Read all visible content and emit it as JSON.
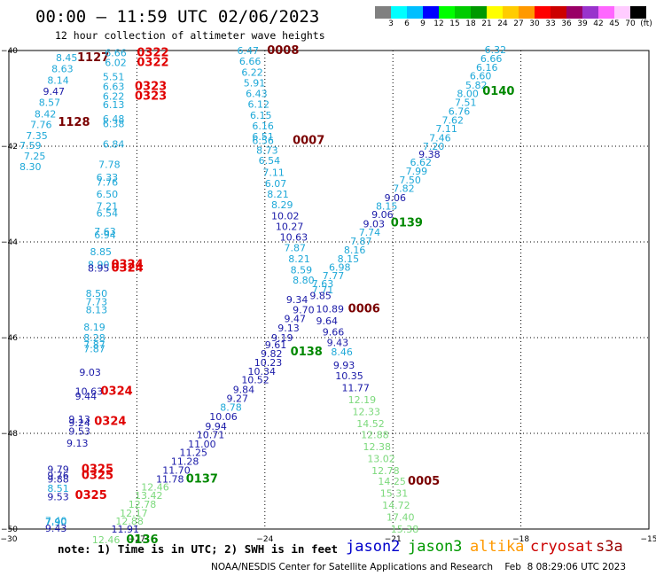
{
  "header": {
    "title": "00:00 — 11:59 UTC 02/06/2023",
    "subtitle": "12 hour collection of altimeter wave heights"
  },
  "legend": {
    "colors": [
      "#808080",
      "#00ffff",
      "#00bfff",
      "#0000ff",
      "#00ff00",
      "#00cc00",
      "#009900",
      "#ffff00",
      "#ffcc00",
      "#ff9900",
      "#ff0000",
      "#cc0000",
      "#990066",
      "#9933cc",
      "#ff66ff",
      "#ffccff",
      "#000000"
    ],
    "labels": [
      "3",
      "6",
      "9",
      "12",
      "15",
      "18",
      "21",
      "24",
      "27",
      "30",
      "33",
      "36",
      "39",
      "42",
      "45",
      "70",
      "(ft)"
    ]
  },
  "axes": {
    "x_ticks": [
      "−30",
      "−27",
      "−24",
      "−21",
      "−18",
      "−15"
    ],
    "y_ticks": [
      "−40",
      "−42",
      "−44",
      "−46",
      "−48",
      "−50"
    ]
  },
  "colors": {
    "cyan": "#1ea8d8",
    "blue": "#1a1aa8",
    "green": "#7cd97c",
    "darkgreen": "#008800",
    "red": "#e00000",
    "maroon": "#7a0000",
    "grid": "#000000"
  },
  "tracks": [
    {
      "name": "track-1127-cyan",
      "color": "cyan",
      "lat": [
        -40.1,
        -40.35,
        -40.65,
        -40.95,
        -41.25,
        -41.55,
        -41.85,
        -42.15,
        -42.45
      ],
      "lon": [
        -28.8,
        -28.9,
        -29.0,
        -29.1,
        -29.2,
        -29.3,
        -29.4,
        -29.5,
        -29.6
      ],
      "values": [
        "8.45",
        "8.63",
        "8.14",
        "9.47",
        "8.57",
        "8.42",
        "7.76",
        "7.35",
        "7.59"
      ]
    },
    {
      "name": "track-1127-cyan-b",
      "color": "cyan",
      "lat": [
        -42.3,
        -42.55
      ],
      "lon": [
        -29.45,
        -29.55
      ],
      "values": [
        "7.25",
        "8.30"
      ]
    }
  ],
  "labels": [
    {
      "t": "8.45",
      "c": "cyan",
      "lon": -28.9,
      "lat": -40.15
    },
    {
      "t": "8.63",
      "c": "cyan",
      "lon": -29.0,
      "lat": -40.38
    },
    {
      "t": "8.14",
      "c": "cyan",
      "lon": -29.1,
      "lat": -40.62
    },
    {
      "t": "9.47",
      "c": "blue",
      "lon": -29.2,
      "lat": -40.85
    },
    {
      "t": "8.57",
      "c": "cyan",
      "lon": -29.3,
      "lat": -41.08
    },
    {
      "t": "8.42",
      "c": "cyan",
      "lon": -29.4,
      "lat": -41.32
    },
    {
      "t": "7.76",
      "c": "cyan",
      "lon": -29.5,
      "lat": -41.55
    },
    {
      "t": "7.35",
      "c": "cyan",
      "lon": -29.6,
      "lat": -41.78
    },
    {
      "t": "7.59",
      "c": "cyan",
      "lon": -29.75,
      "lat": -41.98
    },
    {
      "t": "7.25",
      "c": "cyan",
      "lon": -29.65,
      "lat": -42.2
    },
    {
      "t": "8.30",
      "c": "cyan",
      "lon": -29.75,
      "lat": -42.43
    },
    {
      "t": "1127",
      "c": "maroon",
      "lon": -28.4,
      "lat": -40.15,
      "big": true
    },
    {
      "t": "1128",
      "c": "maroon",
      "lon": -28.85,
      "lat": -41.5,
      "big": true
    },
    {
      "t": "6.66",
      "c": "cyan",
      "lon": -27.75,
      "lat": -40.05
    },
    {
      "t": "6.02",
      "c": "cyan",
      "lon": -27.75,
      "lat": -40.25
    },
    {
      "t": "5.51",
      "c": "cyan",
      "lon": -27.8,
      "lat": -40.55
    },
    {
      "t": "6.63",
      "c": "cyan",
      "lon": -27.8,
      "lat": -40.75
    },
    {
      "t": "6.22",
      "c": "cyan",
      "lon": -27.8,
      "lat": -40.95
    },
    {
      "t": "6.13",
      "c": "cyan",
      "lon": -27.8,
      "lat": -41.13
    },
    {
      "t": "6.48",
      "c": "cyan",
      "lon": -27.8,
      "lat": -41.43
    },
    {
      "t": "6.38",
      "c": "cyan",
      "lon": -27.8,
      "lat": -41.53
    },
    {
      "t": "6.84",
      "c": "cyan",
      "lon": -27.8,
      "lat": -41.95
    },
    {
      "t": "0322",
      "c": "red",
      "lon": -27.0,
      "lat": -40.05,
      "big": true
    },
    {
      "t": "0322",
      "c": "red",
      "lon": -27.0,
      "lat": -40.25,
      "big": true
    },
    {
      "t": "0323",
      "c": "red",
      "lon": -27.05,
      "lat": -40.75,
      "big": true
    },
    {
      "t": "0323",
      "c": "red",
      "lon": -27.05,
      "lat": -40.95,
      "big": true
    },
    {
      "t": "7.78",
      "c": "cyan",
      "lon": -27.9,
      "lat": -42.38
    },
    {
      "t": "6.33",
      "c": "cyan",
      "lon": -27.95,
      "lat": -42.65
    },
    {
      "t": "7.76",
      "c": "cyan",
      "lon": -27.95,
      "lat": -42.75
    },
    {
      "t": "6.50",
      "c": "cyan",
      "lon": -27.95,
      "lat": -43.0
    },
    {
      "t": "7.21",
      "c": "cyan",
      "lon": -27.95,
      "lat": -43.25
    },
    {
      "t": "6.54",
      "c": "cyan",
      "lon": -27.95,
      "lat": -43.4
    },
    {
      "t": "7.63",
      "c": "cyan",
      "lon": -28.0,
      "lat": -43.78
    },
    {
      "t": "6.94",
      "c": "cyan",
      "lon": -28.0,
      "lat": -43.85
    },
    {
      "t": "8.85",
      "c": "cyan",
      "lon": -28.1,
      "lat": -44.2
    },
    {
      "t": "8.90",
      "c": "cyan",
      "lon": -28.15,
      "lat": -44.47
    },
    {
      "t": "8.95",
      "c": "blue",
      "lon": -28.15,
      "lat": -44.55
    },
    {
      "t": "0324",
      "c": "red",
      "lon": -27.6,
      "lat": -44.47,
      "big": true
    },
    {
      "t": "0324",
      "c": "red",
      "lon": -27.6,
      "lat": -44.55,
      "big": true
    },
    {
      "t": "8.50",
      "c": "cyan",
      "lon": -28.2,
      "lat": -45.07
    },
    {
      "t": "7.73",
      "c": "cyan",
      "lon": -28.2,
      "lat": -45.25
    },
    {
      "t": "8.13",
      "c": "cyan",
      "lon": -28.2,
      "lat": -45.42
    },
    {
      "t": "8.19",
      "c": "cyan",
      "lon": -28.25,
      "lat": -45.78
    },
    {
      "t": "8.28",
      "c": "cyan",
      "lon": -28.25,
      "lat": -46.0
    },
    {
      "t": "7.87",
      "c": "cyan",
      "lon": -28.25,
      "lat": -46.15
    },
    {
      "t": "7.87",
      "c": "cyan",
      "lon": -28.25,
      "lat": -46.23
    },
    {
      "t": "9.03",
      "c": "blue",
      "lon": -28.35,
      "lat": -46.72
    },
    {
      "t": "10.63",
      "c": "blue",
      "lon": -28.45,
      "lat": -47.12
    },
    {
      "t": "9.44",
      "c": "blue",
      "lon": -28.45,
      "lat": -47.22
    },
    {
      "t": "0324",
      "c": "red",
      "lon": -27.85,
      "lat": -47.12,
      "big": true
    },
    {
      "t": "9.13",
      "c": "blue",
      "lon": -28.6,
      "lat": -47.7
    },
    {
      "t": "9.24",
      "c": "blue",
      "lon": -28.6,
      "lat": -47.78
    },
    {
      "t": "9.53",
      "c": "blue",
      "lon": -28.6,
      "lat": -47.95
    },
    {
      "t": "0324",
      "c": "red",
      "lon": -28.0,
      "lat": -47.75,
      "big": true
    },
    {
      "t": "9.13",
      "c": "blue",
      "lon": -28.65,
      "lat": -48.2
    },
    {
      "t": "9.79",
      "c": "blue",
      "lon": -29.1,
      "lat": -48.75
    },
    {
      "t": "9.76",
      "c": "blue",
      "lon": -29.1,
      "lat": -48.88
    },
    {
      "t": "9.88",
      "c": "blue",
      "lon": -29.1,
      "lat": -48.95
    },
    {
      "t": "0325",
      "c": "red",
      "lon": -28.3,
      "lat": -48.75,
      "big": true
    },
    {
      "t": "0325",
      "c": "red",
      "lon": -28.3,
      "lat": -48.88,
      "big": true
    },
    {
      "t": "8.51",
      "c": "cyan",
      "lon": -29.1,
      "lat": -49.15
    },
    {
      "t": "9.53",
      "c": "blue",
      "lon": -29.1,
      "lat": -49.32
    },
    {
      "t": "0325",
      "c": "red",
      "lon": -28.45,
      "lat": -49.3,
      "big": true
    },
    {
      "t": "7.40",
      "c": "cyan",
      "lon": -29.15,
      "lat": -49.82
    },
    {
      "t": "7.90",
      "c": "cyan",
      "lon": -29.15,
      "lat": -49.85
    },
    {
      "t": "9.43",
      "c": "blue",
      "lon": -29.15,
      "lat": -49.98
    },
    {
      "t": "6.47",
      "c": "cyan",
      "lon": -24.65,
      "lat": -40.0
    },
    {
      "t": "6.66",
      "c": "cyan",
      "lon": -24.6,
      "lat": -40.22
    },
    {
      "t": "6.22",
      "c": "cyan",
      "lon": -24.55,
      "lat": -40.45
    },
    {
      "t": "5.91",
      "c": "cyan",
      "lon": -24.5,
      "lat": -40.68
    },
    {
      "t": "6.43",
      "c": "cyan",
      "lon": -24.45,
      "lat": -40.9
    },
    {
      "t": "6.12",
      "c": "cyan",
      "lon": -24.4,
      "lat": -41.12
    },
    {
      "t": "6.15",
      "c": "cyan",
      "lon": -24.35,
      "lat": -41.35
    },
    {
      "t": "6.16",
      "c": "cyan",
      "lon": -24.3,
      "lat": -41.57
    },
    {
      "t": "6.51",
      "c": "cyan",
      "lon": -24.3,
      "lat": -41.8
    },
    {
      "t": "6.56",
      "c": "cyan",
      "lon": -24.3,
      "lat": -41.88
    },
    {
      "t": "0008",
      "c": "maroon",
      "lon": -23.95,
      "lat": -40.0,
      "big": true
    },
    {
      "t": "0007",
      "c": "maroon",
      "lon": -23.35,
      "lat": -41.88,
      "big": true
    },
    {
      "t": "8.73",
      "c": "cyan",
      "lon": -24.2,
      "lat": -42.08
    },
    {
      "t": "6.54",
      "c": "cyan",
      "lon": -24.15,
      "lat": -42.3
    },
    {
      "t": "7.11",
      "c": "cyan",
      "lon": -24.05,
      "lat": -42.55
    },
    {
      "t": "6.07",
      "c": "cyan",
      "lon": -24.0,
      "lat": -42.78
    },
    {
      "t": "8.21",
      "c": "cyan",
      "lon": -23.95,
      "lat": -43.0
    },
    {
      "t": "8.29",
      "c": "cyan",
      "lon": -23.85,
      "lat": -43.22
    },
    {
      "t": "10.02",
      "c": "blue",
      "lon": -23.85,
      "lat": -43.45
    },
    {
      "t": "10.27",
      "c": "blue",
      "lon": -23.75,
      "lat": -43.68
    },
    {
      "t": "10.63",
      "c": "blue",
      "lon": -23.65,
      "lat": -43.9
    },
    {
      "t": "7.87",
      "c": "cyan",
      "lon": -23.55,
      "lat": -44.12
    },
    {
      "t": "8.21",
      "c": "cyan",
      "lon": -23.45,
      "lat": -44.35
    },
    {
      "t": "8.59",
      "c": "cyan",
      "lon": -23.4,
      "lat": -44.58
    },
    {
      "t": "8.80",
      "c": "cyan",
      "lon": -23.35,
      "lat": -44.8
    },
    {
      "t": "9.34",
      "c": "blue",
      "lon": -23.5,
      "lat": -45.2
    },
    {
      "t": "9.70",
      "c": "blue",
      "lon": -23.35,
      "lat": -45.42
    },
    {
      "t": "9.47",
      "c": "blue",
      "lon": -23.55,
      "lat": -45.6
    },
    {
      "t": "9.13",
      "c": "blue",
      "lon": -23.7,
      "lat": -45.8
    },
    {
      "t": "9.19",
      "c": "blue",
      "lon": -23.85,
      "lat": -46.0
    },
    {
      "t": "9.61",
      "c": "blue",
      "lon": -24.0,
      "lat": -46.15
    },
    {
      "t": "9.82",
      "c": "blue",
      "lon": -24.1,
      "lat": -46.33
    },
    {
      "t": "10.23",
      "c": "blue",
      "lon": -24.25,
      "lat": -46.52
    },
    {
      "t": "10.34",
      "c": "blue",
      "lon": -24.4,
      "lat": -46.7
    },
    {
      "t": "10.52",
      "c": "blue",
      "lon": -24.55,
      "lat": -46.88
    },
    {
      "t": "9.84",
      "c": "blue",
      "lon": -24.75,
      "lat": -47.08
    },
    {
      "t": "9.27",
      "c": "blue",
      "lon": -24.9,
      "lat": -47.27
    },
    {
      "t": "8.78",
      "c": "cyan",
      "lon": -25.05,
      "lat": -47.45
    },
    {
      "t": "10.06",
      "c": "blue",
      "lon": -25.3,
      "lat": -47.65
    },
    {
      "t": "9.94",
      "c": "blue",
      "lon": -25.4,
      "lat": -47.85
    },
    {
      "t": "10.71",
      "c": "blue",
      "lon": -25.6,
      "lat": -48.03
    },
    {
      "t": "11.00",
      "c": "blue",
      "lon": -25.8,
      "lat": -48.22
    },
    {
      "t": "11.25",
      "c": "blue",
      "lon": -26.0,
      "lat": -48.4
    },
    {
      "t": "11.28",
      "c": "blue",
      "lon": -26.2,
      "lat": -48.58
    },
    {
      "t": "11.70",
      "c": "blue",
      "lon": -26.4,
      "lat": -48.77
    },
    {
      "t": "11.78",
      "c": "blue",
      "lon": -26.55,
      "lat": -48.95
    },
    {
      "t": "12.46",
      "c": "green",
      "lon": -26.9,
      "lat": -49.12
    },
    {
      "t": "13.42",
      "c": "green",
      "lon": -27.05,
      "lat": -49.3
    },
    {
      "t": "12.78",
      "c": "green",
      "lon": -27.2,
      "lat": -49.48
    },
    {
      "t": "12.17",
      "c": "green",
      "lon": -27.4,
      "lat": -49.67
    },
    {
      "t": "12.88",
      "c": "green",
      "lon": -27.5,
      "lat": -49.83
    },
    {
      "t": "11.91",
      "c": "blue",
      "lon": -27.6,
      "lat": -50.0
    },
    {
      "t": "12.46",
      "c": "green",
      "lon": -28.05,
      "lat": -50.22
    },
    {
      "t": "0137",
      "c": "darkgreen",
      "lon": -25.85,
      "lat": -48.95,
      "big": true
    },
    {
      "t": "0136",
      "c": "darkgreen",
      "lon": -27.25,
      "lat": -50.22,
      "big": true
    },
    {
      "t": "0138",
      "c": "darkgreen",
      "lon": -23.4,
      "lat": -46.3,
      "big": true
    },
    {
      "t": "6.32",
      "c": "cyan",
      "lon": -18.85,
      "lat": -39.98
    },
    {
      "t": "6.66",
      "c": "cyan",
      "lon": -18.95,
      "lat": -40.17
    },
    {
      "t": "6.16",
      "c": "cyan",
      "lon": -19.05,
      "lat": -40.35
    },
    {
      "t": "6.60",
      "c": "cyan",
      "lon": -19.2,
      "lat": -40.53
    },
    {
      "t": "5.82",
      "c": "cyan",
      "lon": -19.3,
      "lat": -40.72
    },
    {
      "t": "8.00",
      "c": "cyan",
      "lon": -19.5,
      "lat": -40.9
    },
    {
      "t": "7.51",
      "c": "cyan",
      "lon": -19.55,
      "lat": -41.08
    },
    {
      "t": "6.76",
      "c": "cyan",
      "lon": -19.7,
      "lat": -41.27
    },
    {
      "t": "7.62",
      "c": "cyan",
      "lon": -19.85,
      "lat": -41.45
    },
    {
      "t": "7.11",
      "c": "cyan",
      "lon": -20.0,
      "lat": -41.63
    },
    {
      "t": "7.46",
      "c": "cyan",
      "lon": -20.15,
      "lat": -41.82
    },
    {
      "t": "7.20",
      "c": "cyan",
      "lon": -20.3,
      "lat": -42.0
    },
    {
      "t": "9.38",
      "c": "blue",
      "lon": -20.4,
      "lat": -42.17
    },
    {
      "t": "6.62",
      "c": "cyan",
      "lon": -20.6,
      "lat": -42.33
    },
    {
      "t": "7.99",
      "c": "cyan",
      "lon": -20.7,
      "lat": -42.52
    },
    {
      "t": "7.50",
      "c": "cyan",
      "lon": -20.85,
      "lat": -42.7
    },
    {
      "t": "7.82",
      "c": "cyan",
      "lon": -21.0,
      "lat": -42.88
    },
    {
      "t": "9.06",
      "c": "blue",
      "lon": -21.2,
      "lat": -43.07
    },
    {
      "t": "8.15",
      "c": "cyan",
      "lon": -21.4,
      "lat": -43.25
    },
    {
      "t": "9.06",
      "c": "blue",
      "lon": -21.5,
      "lat": -43.43
    },
    {
      "t": "9.03",
      "c": "blue",
      "lon": -21.7,
      "lat": -43.62
    },
    {
      "t": "7.74",
      "c": "cyan",
      "lon": -21.8,
      "lat": -43.8
    },
    {
      "t": "7.87",
      "c": "cyan",
      "lon": -22.0,
      "lat": -43.98
    },
    {
      "t": "8.16",
      "c": "cyan",
      "lon": -22.15,
      "lat": -44.17
    },
    {
      "t": "8.15",
      "c": "cyan",
      "lon": -22.3,
      "lat": -44.35
    },
    {
      "t": "6.98",
      "c": "cyan",
      "lon": -22.5,
      "lat": -44.53
    },
    {
      "t": "7.77",
      "c": "cyan",
      "lon": -22.65,
      "lat": -44.7
    },
    {
      "t": "7.63",
      "c": "cyan",
      "lon": -22.9,
      "lat": -44.87
    },
    {
      "t": "7.71",
      "c": "cyan",
      "lon": -22.9,
      "lat": -45.0
    },
    {
      "t": "9.85",
      "c": "blue",
      "lon": -22.95,
      "lat": -45.12
    },
    {
      "t": "10.89",
      "c": "blue",
      "lon": -22.8,
      "lat": -45.4
    },
    {
      "t": "9.64",
      "c": "blue",
      "lon": -22.8,
      "lat": -45.65
    },
    {
      "t": "9.66",
      "c": "blue",
      "lon": -22.65,
      "lat": -45.88
    },
    {
      "t": "9.43",
      "c": "blue",
      "lon": -22.55,
      "lat": -46.1
    },
    {
      "t": "8.46",
      "c": "cyan",
      "lon": -22.45,
      "lat": -46.3
    },
    {
      "t": "9.93",
      "c": "blue",
      "lon": -22.4,
      "lat": -46.57
    },
    {
      "t": "10.35",
      "c": "blue",
      "lon": -22.35,
      "lat": -46.8
    },
    {
      "t": "11.77",
      "c": "blue",
      "lon": -22.2,
      "lat": -47.05
    },
    {
      "t": "12.19",
      "c": "green",
      "lon": -22.05,
      "lat": -47.3
    },
    {
      "t": "12.33",
      "c": "green",
      "lon": -21.95,
      "lat": -47.55
    },
    {
      "t": "14.52",
      "c": "green",
      "lon": -21.85,
      "lat": -47.8
    },
    {
      "t": "12.88",
      "c": "green",
      "lon": -21.75,
      "lat": -48.03
    },
    {
      "t": "12.38",
      "c": "green",
      "lon": -21.7,
      "lat": -48.28
    },
    {
      "t": "13.02",
      "c": "green",
      "lon": -21.6,
      "lat": -48.53
    },
    {
      "t": "12.78",
      "c": "green",
      "lon": -21.5,
      "lat": -48.78
    },
    {
      "t": "14.25",
      "c": "green",
      "lon": -21.35,
      "lat": -49.0
    },
    {
      "t": "15.31",
      "c": "green",
      "lon": -21.3,
      "lat": -49.25
    },
    {
      "t": "14.72",
      "c": "green",
      "lon": -21.25,
      "lat": -49.5
    },
    {
      "t": "17.40",
      "c": "green",
      "lon": -21.15,
      "lat": -49.75
    },
    {
      "t": "15.38",
      "c": "green",
      "lon": -21.05,
      "lat": -50.0
    },
    {
      "t": "0140",
      "c": "darkgreen",
      "lon": -18.9,
      "lat": -40.85,
      "big": true
    },
    {
      "t": "0139",
      "c": "darkgreen",
      "lon": -21.05,
      "lat": -43.6,
      "big": true
    },
    {
      "t": "0006",
      "c": "maroon",
      "lon": -22.05,
      "lat": -45.4,
      "big": true
    },
    {
      "t": "0005",
      "c": "maroon",
      "lon": -20.65,
      "lat": -49.0,
      "big": true
    }
  ],
  "footer": {
    "note": "note: 1) Time is in UTC; 2) SWH is in feet",
    "satellites": [
      {
        "name": "jason2",
        "color": "#0000cc"
      },
      {
        "name": "jason3",
        "color": "#009900"
      },
      {
        "name": "altika",
        "color": "#ff9900"
      },
      {
        "name": "cryosat",
        "color": "#cc0000"
      },
      {
        "name": "s3a",
        "color": "#990000"
      }
    ],
    "credit": "NOAA/NESDIS Center for Satellite Applications and Research    Feb  8 08:29:06 UTC 2023"
  }
}
